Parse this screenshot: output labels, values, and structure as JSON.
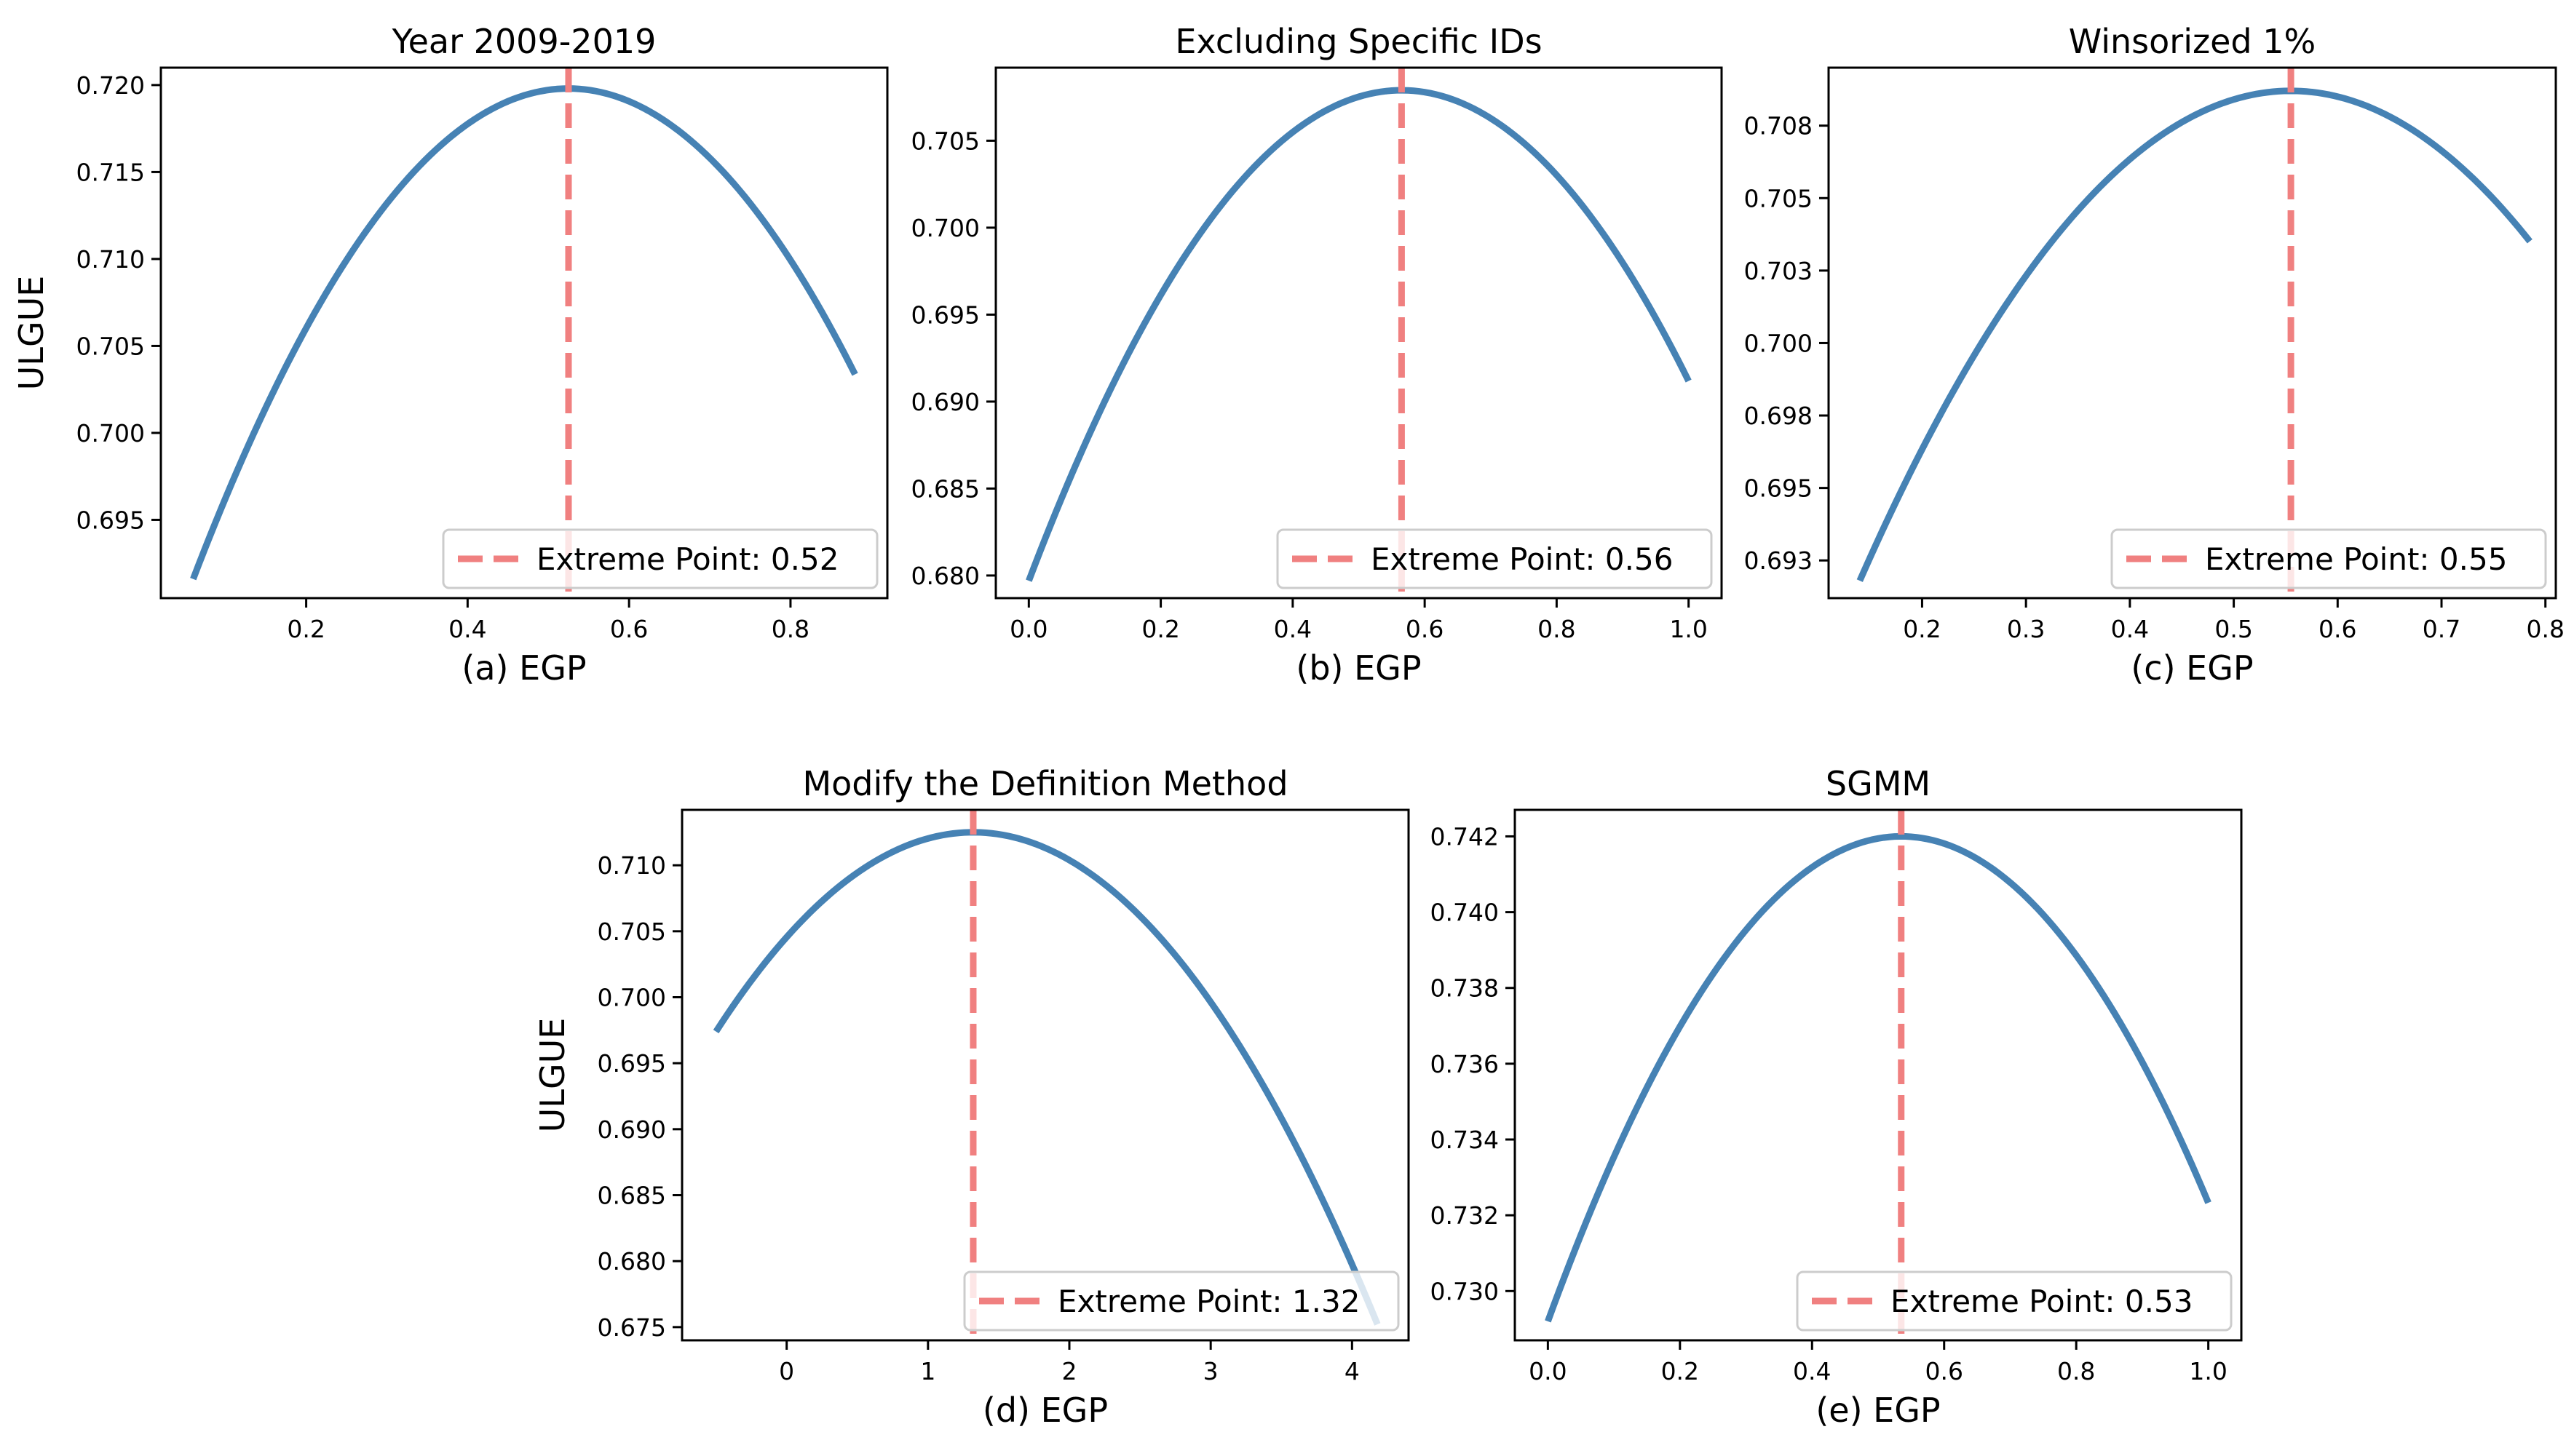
{
  "figure": {
    "ylabel_left": "ULGUE"
  },
  "colors": {
    "curve": "#4682b4",
    "vline": "#f08080",
    "axis": "#000000",
    "legend_border": "#cccccc"
  },
  "chart_data": [
    {
      "type": "line",
      "title": "Year 2009-2019",
      "xlabel": "(a) EGP",
      "ylabel": "ULGUE",
      "xlim": [
        0.02,
        0.92
      ],
      "ylim": [
        0.6905,
        0.721
      ],
      "x_ticks": [
        0.2,
        0.4,
        0.6,
        0.8
      ],
      "x_tick_labels": [
        "0.2",
        "0.4",
        "0.6",
        "0.8"
      ],
      "y_ticks": [
        0.695,
        0.7,
        0.705,
        0.71,
        0.715,
        0.72
      ],
      "y_tick_labels": [
        "0.695",
        "0.700",
        "0.705",
        "0.710",
        "0.715",
        "0.720"
      ],
      "curve": {
        "x_start": 0.06,
        "x_end": 0.88,
        "vertex_x": 0.525,
        "vertex_y": 0.7198,
        "y_start": 0.6916
      },
      "extreme_point": 0.525,
      "legend": "Extreme Point: 0.52",
      "legend_loc": "lower-right"
    },
    {
      "type": "line",
      "title": "Excluding Specific IDs",
      "xlabel": "(b) EGP",
      "ylabel": "",
      "xlim": [
        -0.05,
        1.05
      ],
      "ylim": [
        0.6787,
        0.7092
      ],
      "x_ticks": [
        0.0,
        0.2,
        0.4,
        0.6,
        0.8,
        1.0
      ],
      "x_tick_labels": [
        "0.0",
        "0.2",
        "0.4",
        "0.6",
        "0.8",
        "1.0"
      ],
      "y_ticks": [
        0.68,
        0.685,
        0.69,
        0.695,
        0.7,
        0.705
      ],
      "y_tick_labels": [
        "0.680",
        "0.685",
        "0.690",
        "0.695",
        "0.700",
        "0.705"
      ],
      "curve": {
        "x_start": 0.0,
        "x_end": 1.0,
        "vertex_x": 0.565,
        "vertex_y": 0.7079,
        "y_start": 0.6797
      },
      "extreme_point": 0.565,
      "legend": "Extreme Point: 0.56",
      "legend_loc": "lower-right"
    },
    {
      "type": "line",
      "title": "Winsorized 1%",
      "xlabel": "(c) EGP",
      "ylabel": "",
      "xlim": [
        0.11,
        0.81
      ],
      "ylim": [
        0.6912,
        0.7095
      ],
      "x_ticks": [
        0.2,
        0.3,
        0.4,
        0.5,
        0.6,
        0.7,
        0.8
      ],
      "x_tick_labels": [
        "0.2",
        "0.3",
        "0.4",
        "0.5",
        "0.6",
        "0.7",
        "0.8"
      ],
      "y_ticks": [
        0.6925,
        0.695,
        0.6975,
        0.7,
        0.7025,
        0.705,
        0.7075
      ],
      "y_tick_labels": [
        "0.693",
        "0.695",
        "0.698",
        "0.700",
        "0.703",
        "0.705",
        "0.708"
      ],
      "curve": {
        "x_start": 0.14,
        "x_end": 0.785,
        "vertex_x": 0.555,
        "vertex_y": 0.7087,
        "y_start": 0.6918
      },
      "extreme_point": 0.555,
      "legend": "Extreme Point: 0.55",
      "legend_loc": "lower-right"
    },
    {
      "type": "line",
      "title": "Modify the Definition Method",
      "xlabel": "(d) EGP",
      "ylabel": "ULGUE",
      "xlim": [
        -0.74,
        4.4
      ],
      "ylim": [
        0.674,
        0.7142
      ],
      "x_ticks": [
        0,
        1,
        2,
        3,
        4
      ],
      "x_tick_labels": [
        "0",
        "1",
        "2",
        "3",
        "4"
      ],
      "y_ticks": [
        0.675,
        0.68,
        0.685,
        0.69,
        0.695,
        0.7,
        0.705,
        0.71
      ],
      "y_tick_labels": [
        "0.675",
        "0.680",
        "0.685",
        "0.690",
        "0.695",
        "0.700",
        "0.705",
        "0.710"
      ],
      "curve": {
        "x_start": -0.5,
        "x_end": 4.18,
        "vertex_x": 1.32,
        "vertex_y": 0.7125,
        "y_start": 0.6974
      },
      "extreme_point": 1.32,
      "legend": "Extreme Point: 1.32",
      "legend_loc": "lower-right"
    },
    {
      "type": "line",
      "title": "SGMM",
      "xlabel": "(e) EGP",
      "ylabel": "",
      "xlim": [
        -0.05,
        1.05
      ],
      "ylim": [
        0.7287,
        0.7427
      ],
      "x_ticks": [
        0.0,
        0.2,
        0.4,
        0.6,
        0.8,
        1.0
      ],
      "x_tick_labels": [
        "0.0",
        "0.2",
        "0.4",
        "0.6",
        "0.8",
        "1.0"
      ],
      "y_ticks": [
        0.73,
        0.732,
        0.734,
        0.736,
        0.738,
        0.74,
        0.742
      ],
      "y_tick_labels": [
        "0.730",
        "0.732",
        "0.734",
        "0.736",
        "0.738",
        "0.740",
        "0.742"
      ],
      "curve": {
        "x_start": 0.0,
        "x_end": 1.0,
        "vertex_x": 0.535,
        "vertex_y": 0.742,
        "y_start": 0.7292
      },
      "extreme_point": 0.535,
      "legend": "Extreme Point: 0.53",
      "legend_loc": "lower-right"
    }
  ]
}
